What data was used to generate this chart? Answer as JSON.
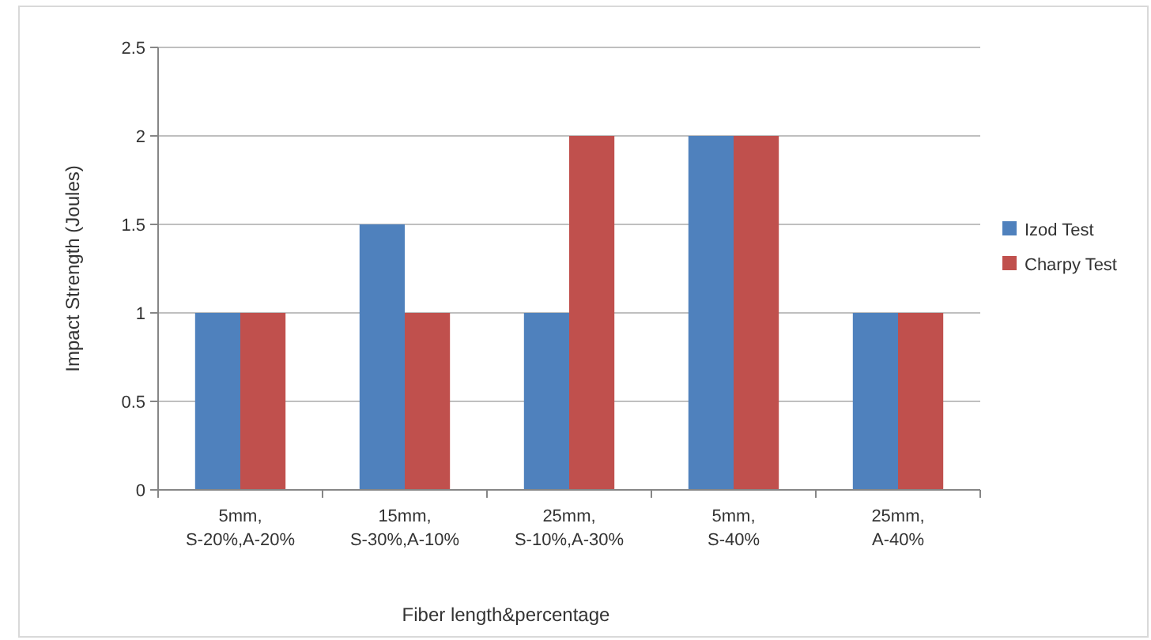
{
  "chart_data": {
    "type": "bar",
    "xlabel": "Fiber length&percentage",
    "ylabel": "Impact Strength (Joules)",
    "categories": [
      "5mm,\nS-20%,A-20%",
      "15mm,\nS-30%,A-10%",
      "25mm,\nS-10%,A-30%",
      "5mm,\nS-40%",
      "25mm,\nA-40%"
    ],
    "series": [
      {
        "name": "Izod Test",
        "color": "#4f81bd",
        "values": [
          1,
          1.5,
          1,
          2,
          1
        ]
      },
      {
        "name": "Charpy Test",
        "color": "#c0504d",
        "values": [
          1,
          1,
          2,
          2,
          1
        ]
      }
    ],
    "ylim": [
      0,
      2.5
    ],
    "yticks": [
      0,
      0.5,
      1,
      1.5,
      2,
      2.5
    ],
    "grid": "y",
    "legend": "right"
  }
}
